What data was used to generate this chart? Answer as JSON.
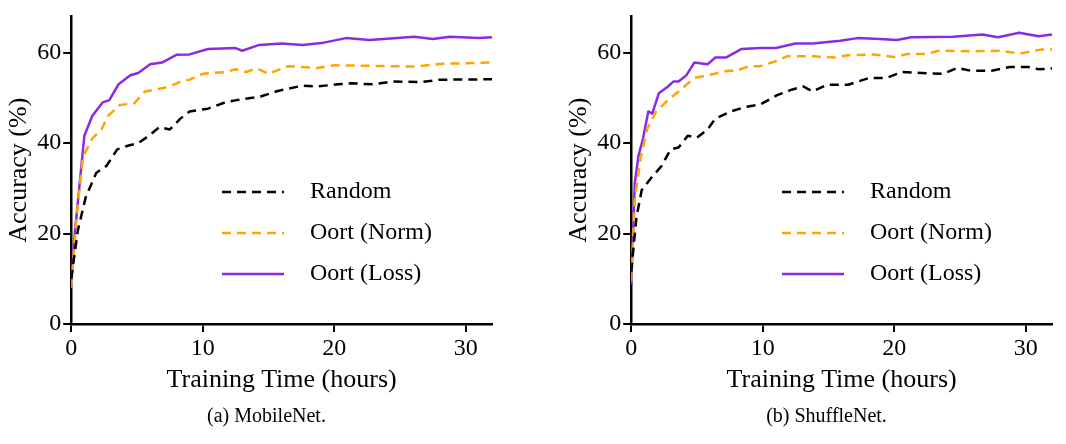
{
  "chart_data": [
    {
      "type": "line",
      "xlabel": "Training Time (hours)",
      "ylabel": "Accuracy (%)",
      "annotations": [
        "(a)  MobileNet."
      ],
      "xlim": [
        0,
        32
      ],
      "ylim": [
        0,
        68
      ],
      "xticks": [
        0,
        10,
        20,
        30
      ],
      "yticks": [
        0,
        20,
        40,
        60
      ],
      "legend": "bottom right",
      "series": [
        {
          "name": "Random",
          "color": "#000000",
          "line_style": "dashed",
          "x": [
            0,
            0.5,
            1.1,
            1.9,
            2.7,
            3.5,
            4.3,
            5.1,
            5.9,
            6.7,
            7.5,
            8.3,
            9,
            10.4,
            11.7,
            12.8,
            14.4,
            15.7,
            17.6,
            18.7,
            20.3,
            21.3,
            22.9,
            24.5,
            26.7,
            28,
            32
          ],
          "values": [
            10,
            20.6,
            28,
            33.4,
            35,
            38.6,
            39.4,
            40,
            41.6,
            43.5,
            43,
            45.4,
            47,
            47.6,
            49,
            49.6,
            50.3,
            51.5,
            52.7,
            52.5,
            53,
            53.2,
            53,
            53.6,
            53.5,
            54,
            54.1
          ]
        },
        {
          "name": "Oort (Norm)",
          "color": "#ffa500",
          "line_style": "dashed",
          "x": [
            0,
            0.4,
            0.9,
            1.6,
            2.3,
            2.8,
            3.7,
            4.8,
            5.6,
            6.7,
            7.5,
            8.3,
            9,
            10,
            11.7,
            12.5,
            13.3,
            14.1,
            15,
            16.5,
            18.7,
            20,
            24,
            26.1,
            28,
            32
          ],
          "values": [
            7.9,
            23.6,
            37,
            41,
            43,
            46,
            48.4,
            48.8,
            51.4,
            52,
            52.5,
            53.6,
            54,
            55.3,
            55.7,
            56.3,
            55.7,
            56.5,
            55.3,
            57,
            56.6,
            57.2,
            57,
            56.9,
            57.5,
            57.8
          ]
        },
        {
          "name": "Oort (Loss)",
          "color": "#8a2be2",
          "line_style": "solid",
          "x": [
            0,
            0.27,
            1,
            1.6,
            2.4,
            2.9,
            3.6,
            4.5,
            5.1,
            6,
            6.9,
            8,
            9,
            10.4,
            12.5,
            13,
            14.3,
            16,
            17.6,
            19.2,
            20.9,
            22.7,
            26.1,
            27.5,
            28.8,
            31,
            32
          ],
          "values": [
            8.6,
            20,
            41.6,
            46,
            49,
            49.5,
            53,
            55,
            55.5,
            57.4,
            57.8,
            59.5,
            59.6,
            60.8,
            61,
            60.4,
            61.7,
            62,
            61.7,
            62.2,
            63.2,
            62.8,
            63.5,
            63,
            63.5,
            63.2,
            63.4
          ]
        }
      ]
    },
    {
      "type": "line",
      "xlabel": "Training Time (hours)",
      "ylabel": "Accuracy (%)",
      "annotations": [
        "(b)  ShuffleNet."
      ],
      "xlim": [
        0,
        32
      ],
      "ylim": [
        0,
        68
      ],
      "xticks": [
        0,
        10,
        20,
        30
      ],
      "yticks": [
        0,
        20,
        40,
        60
      ],
      "legend": "bottom right",
      "series": [
        {
          "name": "Random",
          "color": "#000000",
          "line_style": "dashed",
          "x": [
            0,
            0.4,
            0.8,
            1.6,
            2.3,
            3,
            3.6,
            4.3,
            5,
            5.8,
            6.4,
            7.6,
            8.7,
            9.8,
            11.1,
            12.2,
            13.1,
            13.8,
            14.9,
            16.5,
            18.1,
            19.4,
            20.6,
            22.1,
            23.7,
            24.8,
            25.8,
            27.4,
            28.8,
            30.2,
            31,
            32
          ],
          "values": [
            11.6,
            23.6,
            29.6,
            32.6,
            34.9,
            38.6,
            39,
            41.6,
            41.2,
            43,
            45.4,
            47,
            48,
            48.5,
            50.6,
            51.8,
            52.5,
            51.4,
            52.9,
            52.9,
            54.4,
            54.4,
            55.7,
            55.5,
            55.3,
            56.6,
            56,
            56,
            56.8,
            56.8,
            56.3,
            56.5
          ]
        },
        {
          "name": "Oort (Norm)",
          "color": "#ffa500",
          "line_style": "dashed",
          "x": [
            0,
            0.27,
            0.7,
            1.2,
            1.9,
            2.8,
            3.6,
            4.8,
            5.8,
            6.6,
            7.4,
            8,
            9,
            9.8,
            10.9,
            11.9,
            13.8,
            15.4,
            16.5,
            18.4,
            20,
            21,
            22.4,
            23.4,
            26.1,
            28,
            29.6,
            31.2,
            32
          ],
          "values": [
            9.4,
            27.4,
            36.4,
            43,
            47,
            49.5,
            51.4,
            54.4,
            55,
            55.5,
            56,
            56,
            57,
            57,
            58,
            59.2,
            59.2,
            58.9,
            59.4,
            59.6,
            59,
            59.7,
            59.7,
            60.4,
            60.3,
            60.4,
            59.8,
            60.7,
            60.7
          ]
        },
        {
          "name": "Oort (Loss)",
          "color": "#8a2be2",
          "line_style": "solid",
          "x": [
            0,
            0.27,
            0.54,
            0.9,
            1.3,
            1.6,
            2.1,
            2.8,
            3.2,
            3.6,
            4.2,
            4.8,
            5.8,
            6.4,
            7.2,
            8.4,
            9.8,
            11,
            12.5,
            13.8,
            15.9,
            17.2,
            18.9,
            20.2,
            21.3,
            24.5,
            26.7,
            27.9,
            29.5,
            31,
            32
          ],
          "values": [
            8.6,
            31,
            37,
            41,
            47,
            46.5,
            51,
            52.5,
            53.6,
            53.6,
            55,
            57.8,
            57.4,
            58.9,
            58.9,
            60.8,
            61,
            61,
            62,
            62,
            62.6,
            63.2,
            63,
            62.8,
            63.4,
            63.5,
            64,
            63.4,
            64.4,
            63.6,
            64
          ]
        }
      ]
    }
  ]
}
